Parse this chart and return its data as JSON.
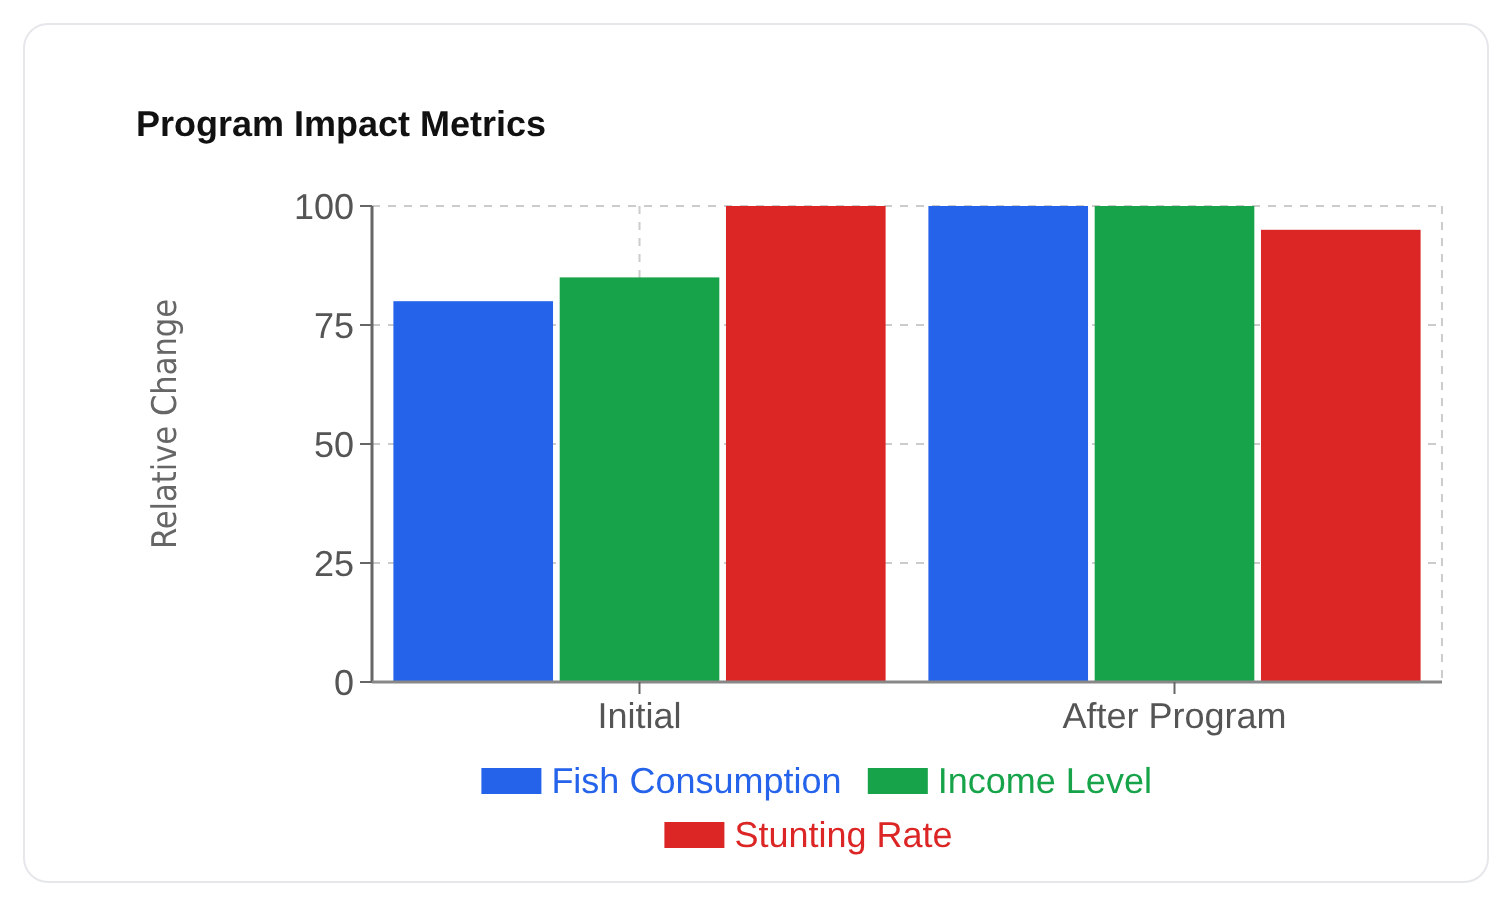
{
  "chart_data": {
    "type": "bar",
    "title": "Program Impact Metrics",
    "ylabel": "Relative Change",
    "categories": [
      "Initial",
      "After Program"
    ],
    "series": [
      {
        "name": "Fish Consumption",
        "color": "#2563eb",
        "values": [
          80,
          100
        ]
      },
      {
        "name": "Income Level",
        "color": "#16a34a",
        "values": [
          85,
          100
        ]
      },
      {
        "name": "Stunting Rate",
        "color": "#dc2626",
        "values": [
          100,
          95
        ]
      }
    ],
    "ylim": [
      0,
      100
    ],
    "yticks": [
      0,
      25,
      50,
      75,
      100
    ],
    "grid": true,
    "legend": "bottom"
  }
}
